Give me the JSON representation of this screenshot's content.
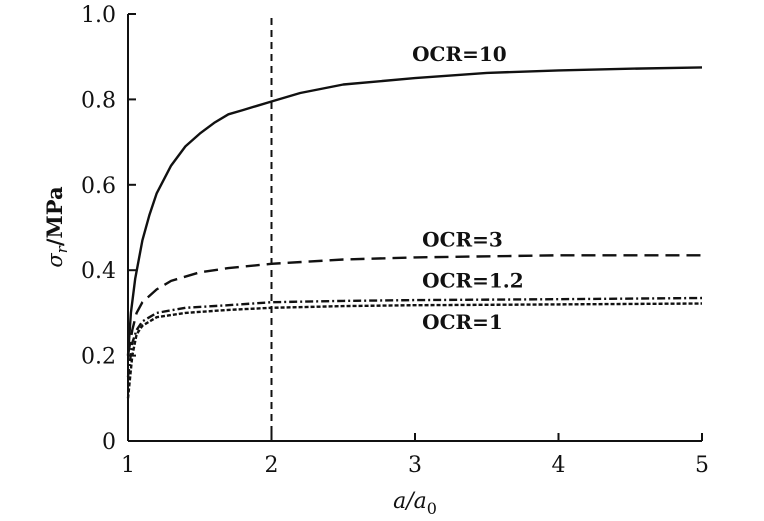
{
  "chart_data": {
    "type": "line",
    "xlabel": "a/a0",
    "ylabel": "σr/MPa",
    "xlim": [
      1,
      5
    ],
    "ylim": [
      0,
      1.0
    ],
    "xticks": [
      "1",
      "2",
      "3",
      "4",
      "5"
    ],
    "yticks": [
      "0",
      "0.2",
      "0.4",
      "0.6",
      "0.8",
      "1.0"
    ],
    "grid": false,
    "legend": "inline labels",
    "reference_line": {
      "x": 2,
      "style": "dashed"
    },
    "series": [
      {
        "name": "OCR=10",
        "style": "solid",
        "label_anchor": {
          "x": 2.98,
          "y": 0.89
        },
        "x": [
          1.0,
          1.02,
          1.05,
          1.1,
          1.15,
          1.2,
          1.3,
          1.4,
          1.5,
          1.6,
          1.7,
          1.8,
          1.9,
          2.0,
          2.2,
          2.5,
          3.0,
          3.5,
          4.0,
          4.5,
          5.0
        ],
        "y": [
          0.2,
          0.3,
          0.38,
          0.47,
          0.53,
          0.58,
          0.645,
          0.69,
          0.72,
          0.745,
          0.765,
          0.775,
          0.785,
          0.795,
          0.815,
          0.835,
          0.85,
          0.862,
          0.868,
          0.872,
          0.875
        ]
      },
      {
        "name": "OCR=3",
        "style": "dashed",
        "label_anchor": {
          "x": 3.05,
          "y": 0.455
        },
        "x": [
          1.0,
          1.03,
          1.06,
          1.1,
          1.2,
          1.3,
          1.5,
          1.7,
          2.0,
          2.5,
          3.0,
          4.0,
          5.0
        ],
        "y": [
          0.2,
          0.26,
          0.3,
          0.325,
          0.355,
          0.375,
          0.395,
          0.405,
          0.415,
          0.425,
          0.43,
          0.435,
          0.435
        ]
      },
      {
        "name": "OCR=1.2",
        "style": "dash-dot",
        "label_anchor": {
          "x": 3.05,
          "y": 0.36
        },
        "x": [
          1.0,
          1.03,
          1.06,
          1.1,
          1.2,
          1.4,
          1.7,
          2.0,
          2.5,
          3.0,
          4.0,
          5.0
        ],
        "y": [
          0.15,
          0.23,
          0.26,
          0.28,
          0.3,
          0.312,
          0.318,
          0.325,
          0.328,
          0.33,
          0.332,
          0.335
        ]
      },
      {
        "name": "OCR=1",
        "style": "dotted",
        "label_anchor": {
          "x": 3.05,
          "y": 0.262
        },
        "x": [
          1.0,
          1.03,
          1.06,
          1.1,
          1.2,
          1.4,
          1.7,
          2.0,
          2.5,
          3.0,
          4.0,
          5.0
        ],
        "y": [
          0.1,
          0.2,
          0.25,
          0.27,
          0.29,
          0.3,
          0.307,
          0.312,
          0.316,
          0.318,
          0.32,
          0.322
        ]
      }
    ]
  }
}
